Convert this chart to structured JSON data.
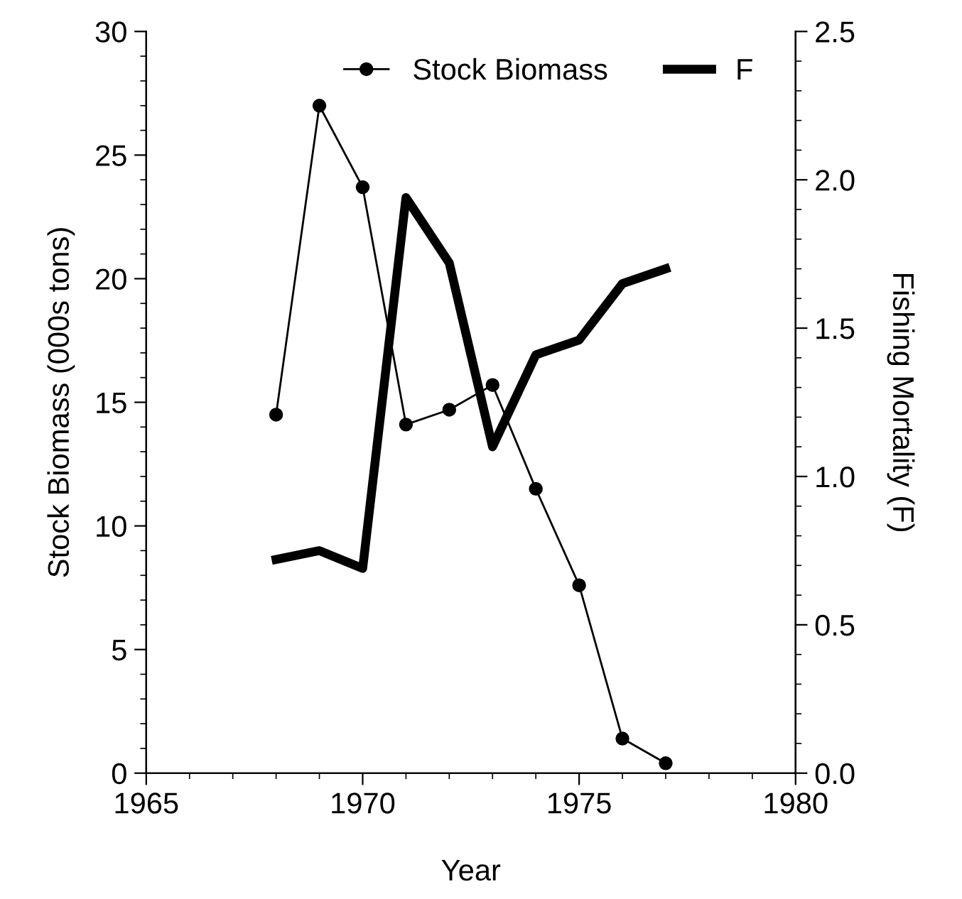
{
  "chart_data": {
    "type": "line",
    "xlabel": "Year",
    "ylabel": "Stock Biomass (000s tons)",
    "y2label": "Fishing Mortality (F)",
    "x": [
      1968,
      1969,
      1970,
      1971,
      1972,
      1973,
      1974,
      1975,
      1976,
      1977
    ],
    "series": [
      {
        "name": "Stock Biomass",
        "color": "#000000",
        "marker": "circle",
        "values": [
          14.5,
          27.0,
          23.7,
          14.1,
          14.7,
          15.7,
          11.5,
          7.6,
          1.4,
          0.4
        ]
      },
      {
        "name": "F",
        "color": "#000000",
        "marker": "none",
        "axis": "y2",
        "values": [
          0.72,
          0.75,
          0.69,
          1.94,
          1.72,
          1.1,
          1.41,
          1.46,
          1.65,
          1.7
        ]
      }
    ],
    "xlim": [
      1965,
      1980
    ],
    "xticks": [
      1965,
      1970,
      1975,
      1980
    ],
    "ylim": [
      0,
      30
    ],
    "yticks": [
      0,
      5,
      10,
      15,
      20,
      25,
      30
    ],
    "y2lim": [
      0,
      2.5
    ],
    "y2ticks": [
      {
        "value": 0,
        "label": "0.0"
      },
      {
        "value": 0.5,
        "label": "0.5"
      },
      {
        "value": 1,
        "label": "1.0"
      },
      {
        "value": 1.5,
        "label": "1.5"
      },
      {
        "value": 2,
        "label": "2.0"
      },
      {
        "value": 2.5,
        "label": "2.5"
      }
    ],
    "grid": false,
    "legend": "top"
  }
}
